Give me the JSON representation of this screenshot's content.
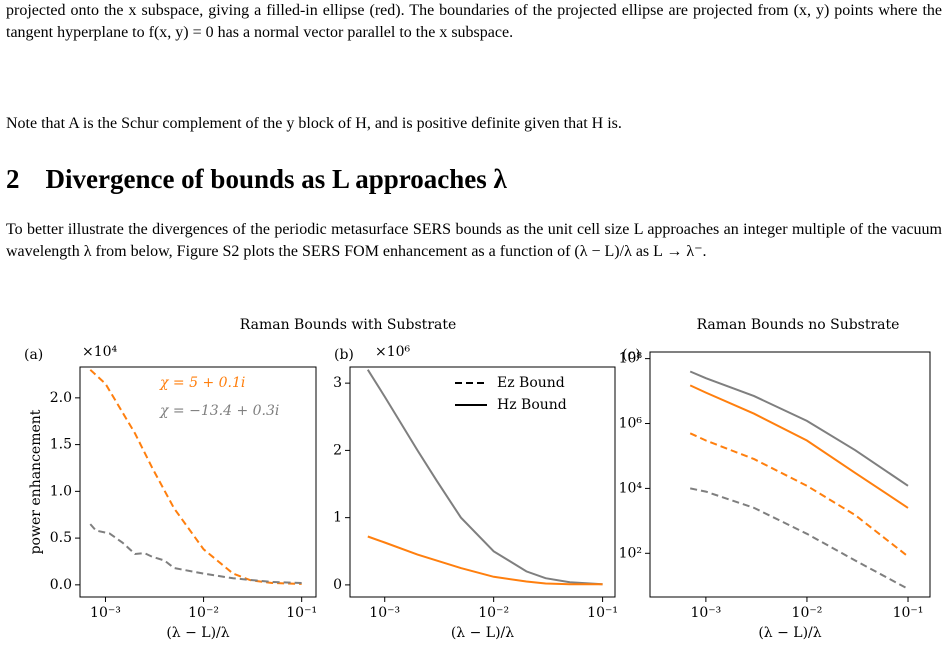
{
  "paragraphs": [
    "projected onto the x subspace, giving a filled-in ellipse (red). The boundaries of the projected ellipse are projected from (x, y) points where the tangent hyperplane to f(x, y) = 0 has a normal vector parallel to the x subspace.",
    "Note that A is the Schur complement of the y block of H, and is positive definite given that H is."
  ],
  "section": {
    "number": "2",
    "title": "Divergence of bounds as L approaches λ",
    "paragraph": "To better illustrate the divergences of the periodic metasurface SERS bounds as the unit cell size L approaches an integer multiple of the vacuum wavelength λ from below, Figure S2 plots the SERS FOM enhancement as a function of (λ − L)/λ as L → λ⁻."
  },
  "chart_data": [
    {
      "type": "line",
      "title": "Raman Bounds with Substrate",
      "panel_label": "(a)",
      "y_multiplier": "×10⁴",
      "xlabel": "(λ − L)/λ",
      "ylabel": "power enhancement",
      "xscale": "log",
      "xlim": [
        0.00055,
        0.14
      ],
      "xticks": [
        {
          "value": 0.001,
          "label": "10⁻³"
        },
        {
          "value": 0.01,
          "label": "10⁻²"
        },
        {
          "value": 0.1,
          "label": "10⁻¹"
        }
      ],
      "ylim": [
        -0.13,
        2.33
      ],
      "yticks": [
        {
          "value": 0,
          "label": "0.0"
        },
        0.5,
        {
          "value": 1,
          "label": "1.0"
        },
        1.5,
        {
          "value": 2,
          "label": "2.0"
        }
      ],
      "series": [
        {
          "name": "χ = 5 + 0.1i",
          "color": "#ff7f0e",
          "dash": true,
          "x": [
            0.0007,
            0.001,
            0.002,
            0.003,
            0.005,
            0.01,
            0.02,
            0.03,
            0.05,
            0.1
          ],
          "values": [
            2.3,
            2.15,
            1.62,
            1.25,
            0.82,
            0.38,
            0.12,
            0.05,
            0.02,
            0.01
          ]
        },
        {
          "name": "χ = −13.4 + 0.3i",
          "color": "#7f7f7f",
          "dash": true,
          "x": [
            0.0007,
            0.0008,
            0.0011,
            0.0015,
            0.002,
            0.0025,
            0.003,
            0.004,
            0.005,
            0.01,
            0.02,
            0.05,
            0.1
          ],
          "values": [
            0.65,
            0.58,
            0.55,
            0.45,
            0.33,
            0.34,
            0.3,
            0.26,
            0.18,
            0.12,
            0.07,
            0.03,
            0.02
          ]
        }
      ]
    },
    {
      "type": "line",
      "panel_label": "(b)",
      "y_multiplier": "×10⁶",
      "xlabel": "(λ − L)/λ",
      "xscale": "log",
      "xlim": [
        0.00048,
        0.13
      ],
      "xticks": [
        {
          "value": 0.001,
          "label": "10⁻³"
        },
        {
          "value": 0.01,
          "label": "10⁻²"
        },
        {
          "value": 0.1,
          "label": "10⁻¹"
        }
      ],
      "ylim": [
        -0.18,
        3.24
      ],
      "yticks": [
        0,
        1,
        2,
        3
      ],
      "legend_entries": [
        {
          "label": "Ez Bound",
          "dash": true,
          "color": "#000000"
        },
        {
          "label": "Hz Bound",
          "dash": false,
          "color": "#000000"
        }
      ],
      "series": [
        {
          "color": "#7f7f7f",
          "dash": false,
          "x": [
            0.0007,
            0.001,
            0.002,
            0.003,
            0.005,
            0.01,
            0.02,
            0.03,
            0.05,
            0.1
          ],
          "values": [
            3.2,
            2.8,
            2.0,
            1.55,
            1.0,
            0.5,
            0.2,
            0.1,
            0.04,
            0.01
          ]
        },
        {
          "color": "#ff7f0e",
          "dash": false,
          "x": [
            0.0007,
            0.001,
            0.002,
            0.005,
            0.01,
            0.02,
            0.03,
            0.05,
            0.1
          ],
          "values": [
            0.72,
            0.63,
            0.45,
            0.25,
            0.12,
            0.05,
            0.02,
            0.01,
            0.01
          ]
        }
      ]
    },
    {
      "type": "line",
      "title": "Raman Bounds no Substrate",
      "panel_label": "(c)",
      "xlabel": "(λ − L)/λ",
      "xscale": "log",
      "yscale": "log",
      "xlim": [
        0.00028,
        0.165
      ],
      "xticks": [
        {
          "value": 0.001,
          "label": "10⁻³"
        },
        {
          "value": 0.01,
          "label": "10⁻²"
        },
        {
          "value": 0.1,
          "label": "10⁻¹"
        }
      ],
      "ylim": [
        4.5,
        160000000
      ],
      "yticks": [
        {
          "value": 100,
          "label": "10²"
        },
        {
          "value": 10000,
          "label": "10⁴"
        },
        {
          "value": 1000000,
          "label": "10⁶"
        },
        {
          "value": 100000000,
          "label": "10⁸"
        }
      ],
      "series": [
        {
          "color": "#7f7f7f",
          "dash": false,
          "x": [
            0.0007,
            0.001,
            0.003,
            0.01,
            0.03,
            0.1
          ],
          "values": [
            40000000,
            25000000,
            7000000,
            1200000,
            150000,
            12000
          ]
        },
        {
          "color": "#ff7f0e",
          "dash": false,
          "x": [
            0.0007,
            0.001,
            0.003,
            0.01,
            0.03,
            0.1
          ],
          "values": [
            15000000,
            9000000,
            2000000,
            300000,
            30000,
            2500
          ]
        },
        {
          "color": "#ff7f0e",
          "dash": true,
          "x": [
            0.0007,
            0.001,
            0.003,
            0.01,
            0.03,
            0.1
          ],
          "values": [
            500000,
            300000,
            80000,
            12000,
            1500,
            80
          ]
        },
        {
          "color": "#7f7f7f",
          "dash": true,
          "x": [
            0.0007,
            0.001,
            0.003,
            0.01,
            0.03,
            0.1
          ],
          "values": [
            10000,
            8000,
            2500,
            400,
            60,
            8
          ]
        }
      ]
    }
  ]
}
